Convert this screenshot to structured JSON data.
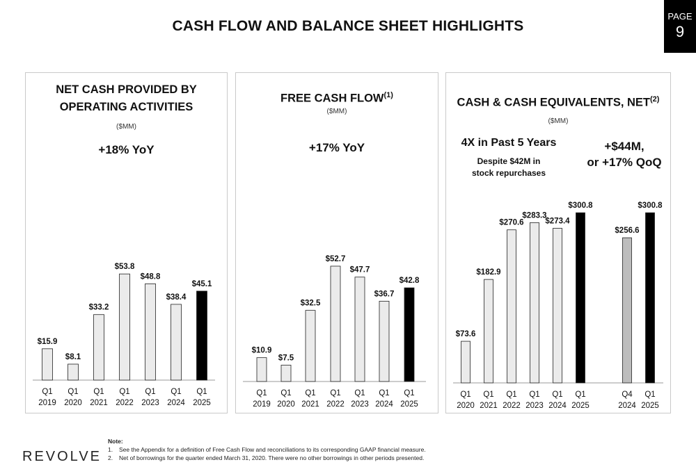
{
  "title": "CASH FLOW AND BALANCE SHEET HIGHLIGHTS",
  "page_badge": {
    "label": "PAGE",
    "number": "9"
  },
  "panels": [
    {
      "title_line1": "NET CASH PROVIDED BY",
      "title_line2": "OPERATING ACTIVITIES",
      "units": "($MM)",
      "yoy": "+18% YoY"
    },
    {
      "title": "FREE CASH FLOW",
      "footnote": "(1)",
      "units": "($MM)",
      "yoy": "+17% YoY"
    },
    {
      "title": "CASH & CASH EQUIVALENTS, NET",
      "footnote": "(2)",
      "units": "($MM)",
      "left_note_head": "4X in Past 5 Years",
      "left_note_line1": "Despite $42M in",
      "left_note_line2": "stock repurchases",
      "right_note_line1": "+$44M,",
      "right_note_line2": "or +17% QoQ"
    }
  ],
  "colors": {
    "bar_fill": "#ebebeb",
    "bar_highlight": "#000000",
    "bar_q4": "#bdbdbd",
    "bar_stroke": "#222222",
    "axis": "#999999"
  },
  "chart_data": [
    {
      "type": "bar",
      "title": "NET CASH PROVIDED BY OPERATING ACTIVITIES",
      "categories": [
        "Q1 2019",
        "Q1 2020",
        "Q1 2021",
        "Q1 2022",
        "Q1 2023",
        "Q1 2024",
        "Q1 2025"
      ],
      "values": [
        15.9,
        8.1,
        33.2,
        53.8,
        48.8,
        38.4,
        45.1
      ],
      "labels": [
        "$15.9",
        "$8.1",
        "$33.2",
        "$53.8",
        "$48.8",
        "$38.4",
        "$45.1"
      ],
      "highlight_index": 6
    },
    {
      "type": "bar",
      "title": "FREE CASH FLOW",
      "categories": [
        "Q1 2019",
        "Q1 2020",
        "Q1 2021",
        "Q1 2022",
        "Q1 2023",
        "Q1 2024",
        "Q1 2025"
      ],
      "values": [
        10.9,
        7.5,
        32.5,
        52.7,
        47.7,
        36.7,
        42.8
      ],
      "labels": [
        "$10.9",
        "$7.5",
        "$32.5",
        "$52.7",
        "$47.7",
        "$36.7",
        "$42.8"
      ],
      "highlight_index": 6
    },
    {
      "type": "bar",
      "title": "CASH & CASH EQUIVALENTS, NET",
      "categories": [
        "Q1 2020",
        "Q1 2021",
        "Q1 2022",
        "Q1 2023",
        "Q1 2024",
        "Q1 2025",
        "Q4 2024",
        "Q1 2025"
      ],
      "values": [
        73.6,
        182.9,
        270.6,
        283.3,
        273.4,
        300.8,
        256.6,
        300.8
      ],
      "labels": [
        "$73.6",
        "$182.9",
        "$270.6",
        "$283.3",
        "$273.4",
        "$300.8",
        "$256.6",
        "$300.8"
      ],
      "highlight_indices": [
        5,
        7
      ],
      "q4_index": 6
    }
  ],
  "logo": "REVOLVE",
  "notes": {
    "heading": "Note:",
    "items": [
      {
        "num": "1.",
        "text": "See the Appendix for a definition of Free Cash Flow and reconciliations to its corresponding GAAP financial measure."
      },
      {
        "num": "2.",
        "text": "Net of borrowings for the quarter ended March 31, 2020. There were no other borrowings in other periods presented."
      }
    ]
  }
}
